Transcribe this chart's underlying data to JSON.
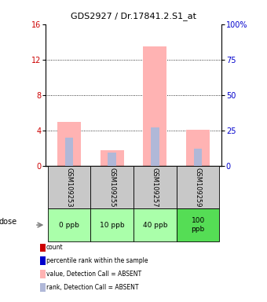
{
  "title": "GDS2927 / Dr.17841.2.S1_at",
  "samples": [
    "GSM109253",
    "GSM109255",
    "GSM109257",
    "GSM109259"
  ],
  "doses": [
    "0 ppb",
    "10 ppb",
    "40 ppb",
    "100\nppb"
  ],
  "pink_bars": [
    5.0,
    1.8,
    13.5,
    4.1
  ],
  "blue_bars_pct": [
    20.0,
    9.5,
    27.0,
    12.5
  ],
  "ylim_left": [
    0,
    16
  ],
  "ylim_right": [
    0,
    100
  ],
  "yticks_left": [
    0,
    4,
    8,
    12,
    16
  ],
  "yticks_right": [
    0,
    25,
    50,
    75,
    100
  ],
  "color_pink": "#ffb3b3",
  "color_blue_light": "#b0b8d8",
  "color_red": "#cc0000",
  "color_blue": "#0000cc",
  "color_gray_bg": "#c8c8c8",
  "color_green_light": "#aaffaa",
  "color_green_dark": "#55dd55",
  "legend_labels": [
    "count",
    "percentile rank within the sample",
    "value, Detection Call = ABSENT",
    "rank, Detection Call = ABSENT"
  ],
  "legend_colors": [
    "#cc0000",
    "#0000cc",
    "#ffb3b3",
    "#b0b8d8"
  ]
}
